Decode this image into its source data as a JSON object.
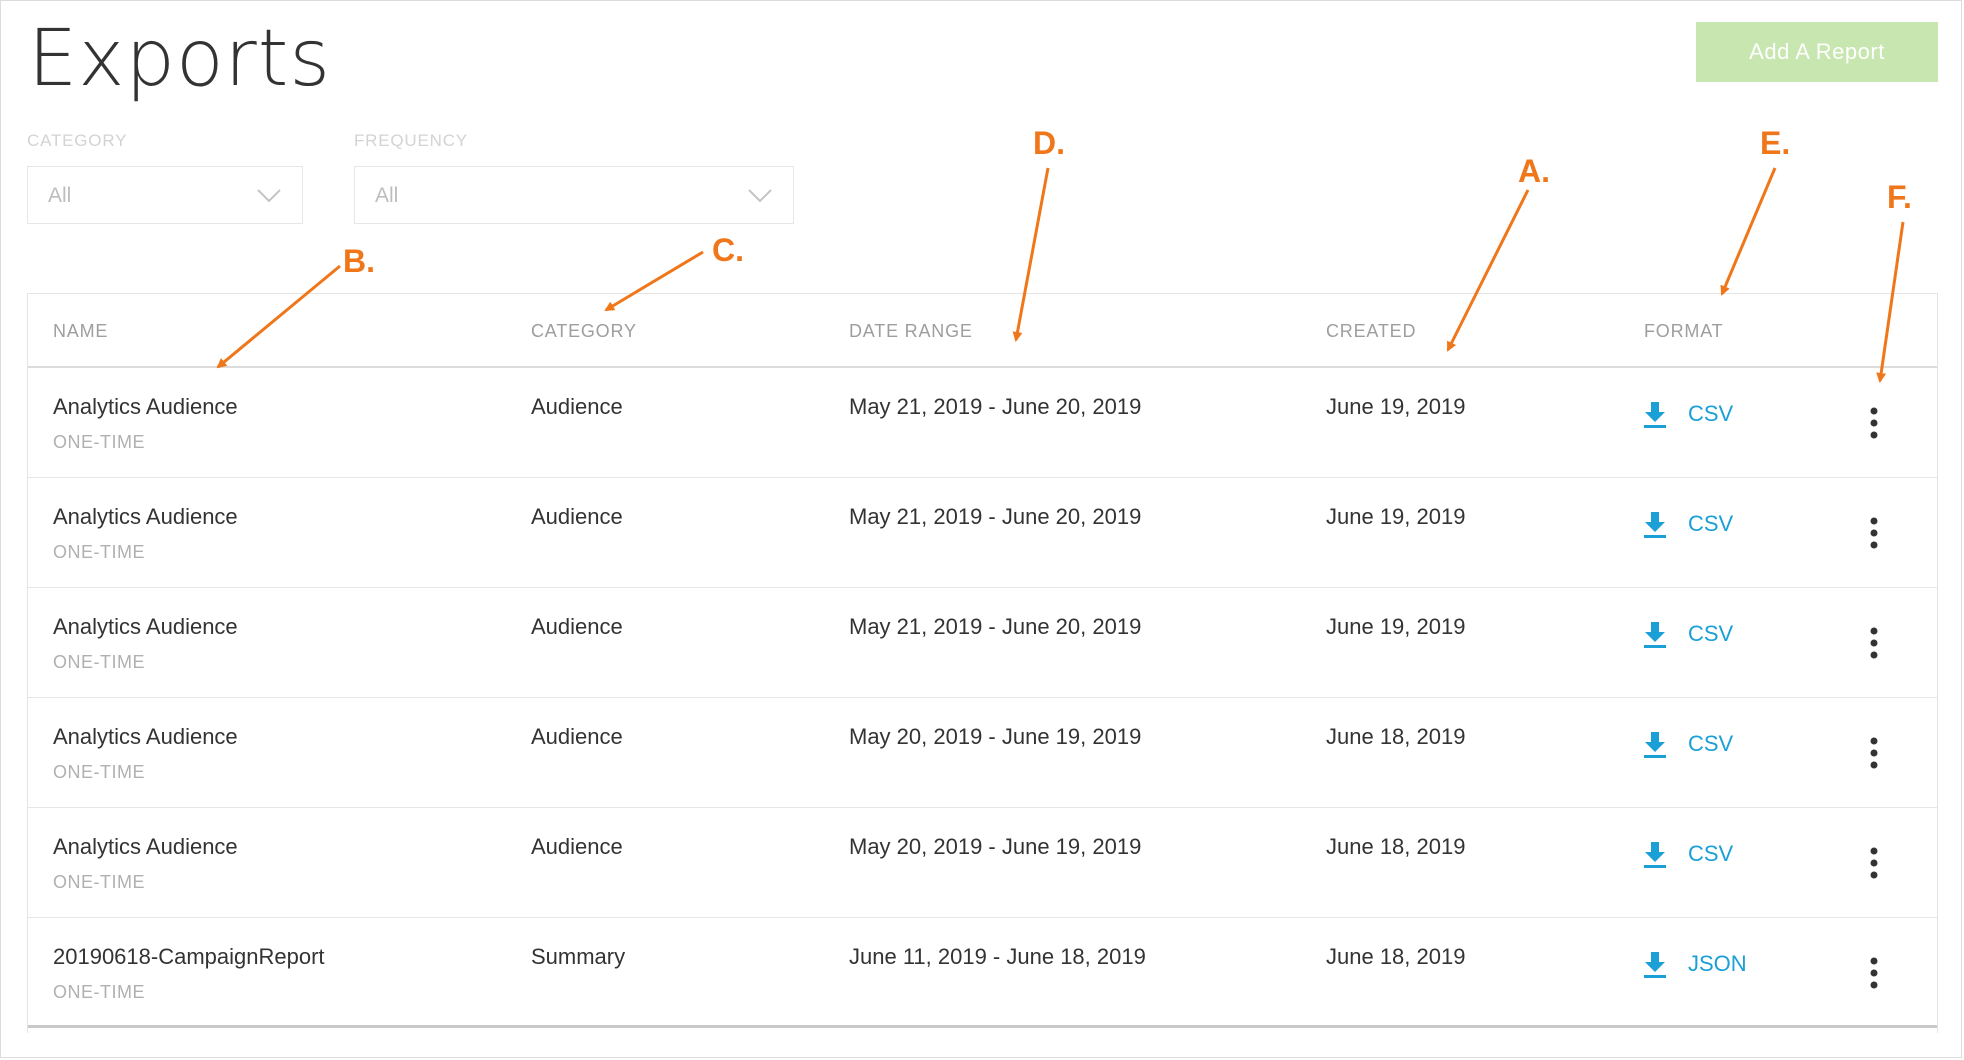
{
  "page": {
    "title": "Exports"
  },
  "toolbar": {
    "add_report_label": "Add A Report"
  },
  "filters": {
    "category": {
      "label": "CATEGORY",
      "value": "All"
    },
    "frequency": {
      "label": "FREQUENCY",
      "value": "All"
    }
  },
  "table": {
    "headers": {
      "name": "NAME",
      "category": "CATEGORY",
      "date_range": "DATE RANGE",
      "created": "CREATED",
      "format": "FORMAT"
    },
    "rows": [
      {
        "name": "Analytics Audience",
        "frequency": "ONE-TIME",
        "category": "Audience",
        "date_range": "May 21, 2019 - June 20, 2019",
        "created": "June 19, 2019",
        "format": "CSV"
      },
      {
        "name": "Analytics Audience",
        "frequency": "ONE-TIME",
        "category": "Audience",
        "date_range": "May 21, 2019 - June 20, 2019",
        "created": "June 19, 2019",
        "format": "CSV"
      },
      {
        "name": "Analytics Audience",
        "frequency": "ONE-TIME",
        "category": "Audience",
        "date_range": "May 21, 2019 - June 20, 2019",
        "created": "June 19, 2019",
        "format": "CSV"
      },
      {
        "name": "Analytics Audience",
        "frequency": "ONE-TIME",
        "category": "Audience",
        "date_range": "May 20, 2019 - June 19, 2019",
        "created": "June 18, 2019",
        "format": "CSV"
      },
      {
        "name": "Analytics Audience",
        "frequency": "ONE-TIME",
        "category": "Audience",
        "date_range": "May 20, 2019 - June 19, 2019",
        "created": "June 18, 2019",
        "format": "CSV"
      },
      {
        "name": "20190618-CampaignReport",
        "frequency": "ONE-TIME",
        "category": "Summary",
        "date_range": "June 11, 2019 - June 18, 2019",
        "created": "June 18, 2019",
        "format": "JSON"
      }
    ]
  },
  "annotations": {
    "a": "A.",
    "b": "B.",
    "c": "C.",
    "d": "D.",
    "e": "E.",
    "f": "F."
  },
  "icons": {
    "download": "download-icon",
    "more": "more-vertical-icon",
    "dropdown": "chevron-down-icon"
  },
  "colors": {
    "accent": "#1a9fd6",
    "button_bg": "#c8e6b0",
    "annotation": "#f0761a"
  }
}
